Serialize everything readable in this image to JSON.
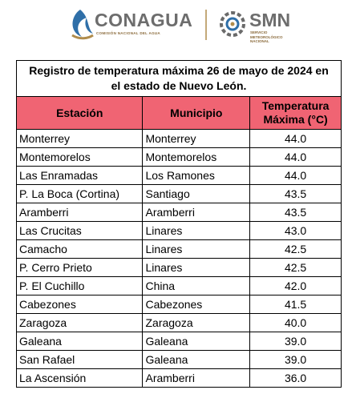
{
  "header": {
    "conagua": "CONAGUA",
    "conagua_subtitle": "COMISIÓN NACIONAL DEL AGUA",
    "smn": "SMN",
    "smn_subtitle": "SERVICIO METEOROLÓGICO NACIONAL"
  },
  "table": {
    "title": "Registro de temperatura máxima 26 de mayo de 2024 en el estado de Nuevo León.",
    "columns": [
      "Estación",
      "Municipio",
      "Temperatura Máxima (°C)"
    ],
    "rows": [
      [
        "Monterrey",
        "Monterrey",
        "44.0"
      ],
      [
        "Montemorelos",
        "Montemorelos",
        "44.0"
      ],
      [
        "Las Enramadas",
        "Los Ramones",
        "44.0"
      ],
      [
        "P. La Boca (Cortina)",
        "Santiago",
        "43.5"
      ],
      [
        "Aramberri",
        "Aramberri",
        "43.5"
      ],
      [
        "Las Crucitas",
        "Linares",
        "43.0"
      ],
      [
        "Camacho",
        "Linares",
        "42.5"
      ],
      [
        "P. Cerro Prieto",
        "Linares",
        "42.5"
      ],
      [
        "P. El Cuchillo",
        "China",
        "42.0"
      ],
      [
        "Cabezones",
        "Cabezones",
        "41.5"
      ],
      [
        "Zaragoza",
        "Zaragoza",
        "40.0"
      ],
      [
        "Galeana",
        "Galeana",
        "39.0"
      ],
      [
        "San Rafael",
        "Galeana",
        "39.0"
      ],
      [
        "La Ascensión",
        "Aramberri",
        "36.0"
      ]
    ]
  }
}
